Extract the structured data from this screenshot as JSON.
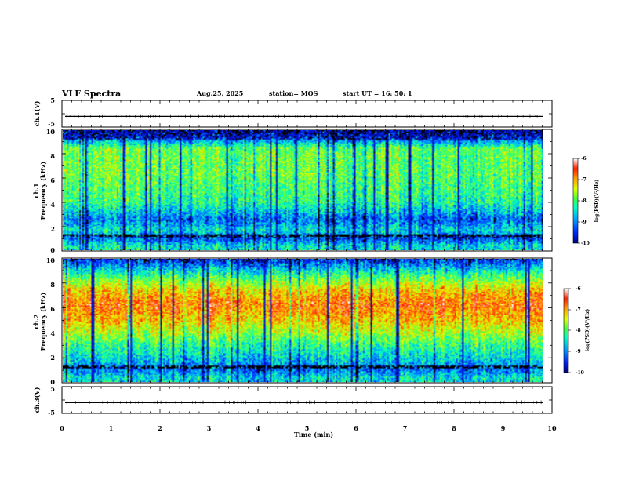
{
  "header": {
    "title": "VLF Spectra",
    "date": "Aug.25, 2025",
    "station": "station= MOS",
    "start": "start  UT =   16: 50: 1"
  },
  "colors": {
    "palette": [
      "#000080",
      "#0020ff",
      "#00a0ff",
      "#00ffc0",
      "#60ff40",
      "#e0ff00",
      "#ffa000",
      "#ff2000",
      "#ffffff"
    ]
  },
  "chart_data": {
    "type": "heatmap",
    "x_axis": {
      "label": "Time (min)",
      "range": [
        0,
        10
      ],
      "ticks": [
        "0",
        "1",
        "2",
        "3",
        "4",
        "5",
        "6",
        "7",
        "8",
        "9",
        "10"
      ]
    },
    "panels": [
      {
        "id": "ch1-voltage",
        "type": "line",
        "ylabel": "ch.1(V)",
        "ylim": [
          -5,
          5
        ],
        "yticks": [
          "5",
          "-5"
        ],
        "baseline": -1
      },
      {
        "id": "ch1-spectrogram",
        "type": "heatmap",
        "ylabel": "ch.1\nFrequency (kHz)",
        "ylabel_lines": [
          "ch.1",
          "Frequency (kHz)"
        ],
        "ylim": [
          0,
          10
        ],
        "yticks": [
          "0",
          "2",
          "4",
          "6",
          "8",
          "10"
        ],
        "colorbar": {
          "label": "log(PSD)(V²/Hz)",
          "range": [
            -10,
            -6
          ],
          "ticks": [
            "-6",
            "-7",
            "-8",
            "-9",
            "-10"
          ]
        },
        "profile": [
          {
            "f": 0.3,
            "level": 0.35
          },
          {
            "f": 1.0,
            "level": 0.15
          },
          {
            "f": 1.6,
            "level": 0.35
          },
          {
            "f": 2.5,
            "level": 0.2
          },
          {
            "f": 4.0,
            "level": 0.42
          },
          {
            "f": 6.5,
            "level": 0.5
          },
          {
            "f": 8.5,
            "level": 0.5
          },
          {
            "f": 9.3,
            "level": 0.2
          },
          {
            "f": 10.0,
            "level": 0.05
          }
        ]
      },
      {
        "id": "ch2-spectrogram",
        "type": "heatmap",
        "ylabel": "ch.2\nFrequency (kHz)",
        "ylabel_lines": [
          "ch.2",
          "Frequency (kHz)"
        ],
        "ylim": [
          0,
          10
        ],
        "yticks": [
          "0",
          "2",
          "4",
          "6",
          "8",
          "10"
        ],
        "colorbar": {
          "label": "log(PSD)(V²/Hz)",
          "range": [
            -10,
            -6
          ],
          "ticks": [
            "-6",
            "-7",
            "-8",
            "-9",
            "-10"
          ]
        },
        "profile": [
          {
            "f": 0.3,
            "level": 0.35
          },
          {
            "f": 1.0,
            "level": 0.2
          },
          {
            "f": 1.6,
            "level": 0.3
          },
          {
            "f": 3.0,
            "level": 0.45
          },
          {
            "f": 5.0,
            "level": 0.72
          },
          {
            "f": 6.3,
            "level": 0.82
          },
          {
            "f": 7.5,
            "level": 0.7
          },
          {
            "f": 8.7,
            "level": 0.45
          },
          {
            "f": 10.0,
            "level": 0.12
          }
        ]
      },
      {
        "id": "ch3-voltage",
        "type": "line",
        "ylabel": "ch.3(V)",
        "ylim": [
          -5,
          5
        ],
        "yticks": [
          "5",
          "-5"
        ],
        "baseline": -1
      }
    ],
    "data_end_min": 9.82
  }
}
